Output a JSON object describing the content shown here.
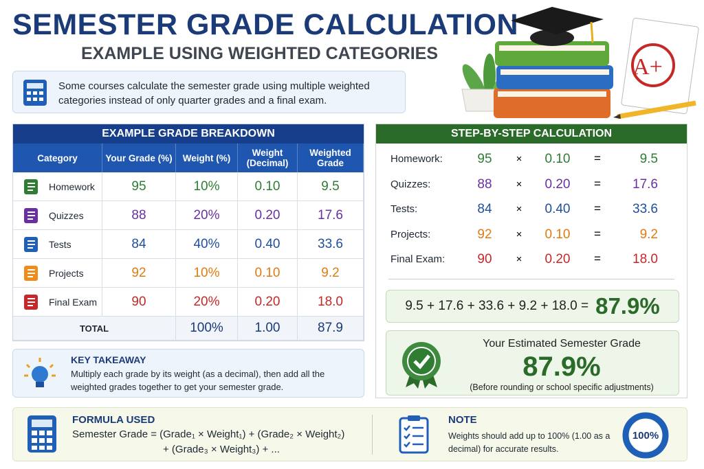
{
  "header": {
    "title": "SEMESTER GRADE CALCULATION",
    "subtitle": "EXAMPLE USING WEIGHTED CATEGORIES"
  },
  "intro": "Some courses calculate the semester grade using multiple weighted categories instead of only quarter grades and a final exam.",
  "illustration": {
    "notepad_text": "A+"
  },
  "table": {
    "title": "EXAMPLE GRADE BREAKDOWN",
    "columns": [
      "Category",
      "Your Grade (%)",
      "Weight (%)",
      "Weight (Decimal)",
      "Weighted Grade"
    ],
    "rows": [
      [
        "Homework",
        "95",
        "10%",
        "0.10",
        "9.5"
      ],
      [
        "Quizzes",
        "88",
        "20%",
        "0.20",
        "17.6"
      ],
      [
        "Tests",
        "84",
        "40%",
        "0.40",
        "33.6"
      ],
      [
        "Projects",
        "92",
        "10%",
        "0.10",
        "9.2"
      ],
      [
        "Final Exam",
        "90",
        "20%",
        "0.20",
        "18.0"
      ]
    ],
    "total": [
      "TOTAL",
      "100%",
      "1.00",
      "87.9"
    ]
  },
  "steps": {
    "title": "STEP-BY-STEP CALCULATION",
    "times": "×",
    "equals": "=",
    "rows": [
      [
        "Homework:",
        "95",
        "0.10",
        "9.5"
      ],
      [
        "Quizzes:",
        "88",
        "0.20",
        "17.6"
      ],
      [
        "Tests:",
        "84",
        "0.40",
        "33.6"
      ],
      [
        "Projects:",
        "92",
        "0.10",
        "9.2"
      ],
      [
        "Final Exam:",
        "90",
        "0.20",
        "18.0"
      ]
    ],
    "sum": "9.5 + 17.6 + 33.6 + 9.2 + 18.0 =",
    "sum_result": "87.9%"
  },
  "result": {
    "label": "Your Estimated Semester Grade",
    "value": "87.9%",
    "note": "(Before rounding or school specific adjustments)"
  },
  "takeaway": {
    "title": "KEY TAKEAWAY",
    "text": "Multiply each grade by its weight (as a decimal), then add all the weighted grades together to get your semester grade."
  },
  "formula": {
    "title": "FORMULA USED",
    "line1": "Semester Grade = (Grade₁ × Weight₁) + (Grade₂ × Weight₂)",
    "line2": "+ (Grade₃ × Weight₃) + ..."
  },
  "note": {
    "title": "NOTE",
    "text": "Weights should add up to 100% (1.00 as a decimal) for accurate results.",
    "badge": "100%"
  }
}
